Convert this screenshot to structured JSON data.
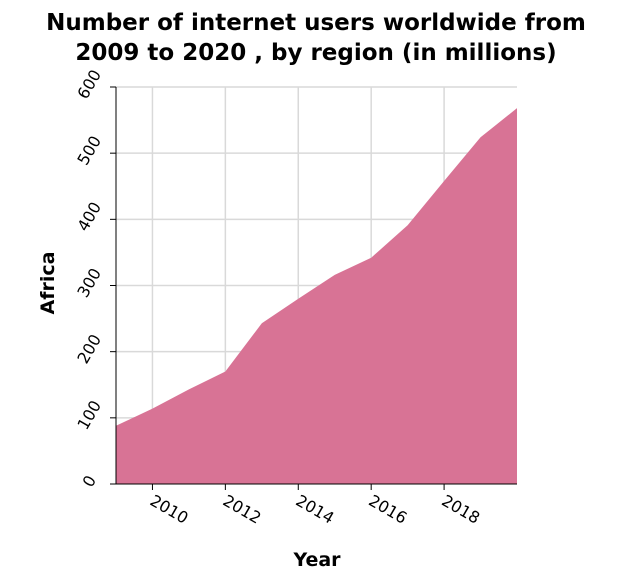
{
  "chart_data": {
    "type": "area",
    "title_lines": [
      "Number of internet users worldwide from",
      "2009 to 2020 , by region (in millions)"
    ],
    "xlabel": "Year",
    "ylabel": "Africa",
    "xlim": [
      2009,
      2020
    ],
    "ylim": [
      0,
      600
    ],
    "x_ticks": [
      2010,
      2012,
      2014,
      2016,
      2018
    ],
    "y_ticks": [
      0,
      100,
      200,
      300,
      400,
      500,
      600
    ],
    "grid": true,
    "fill_color": "#d87395",
    "series": [
      {
        "x": [
          2009,
          2010,
          2011,
          2012,
          2013,
          2014,
          2015,
          2016,
          2017,
          2018,
          2019,
          2020
        ],
        "values": [
          88,
          114,
          143,
          170,
          243,
          280,
          316,
          342,
          391,
          458,
          524,
          568
        ]
      }
    ]
  }
}
